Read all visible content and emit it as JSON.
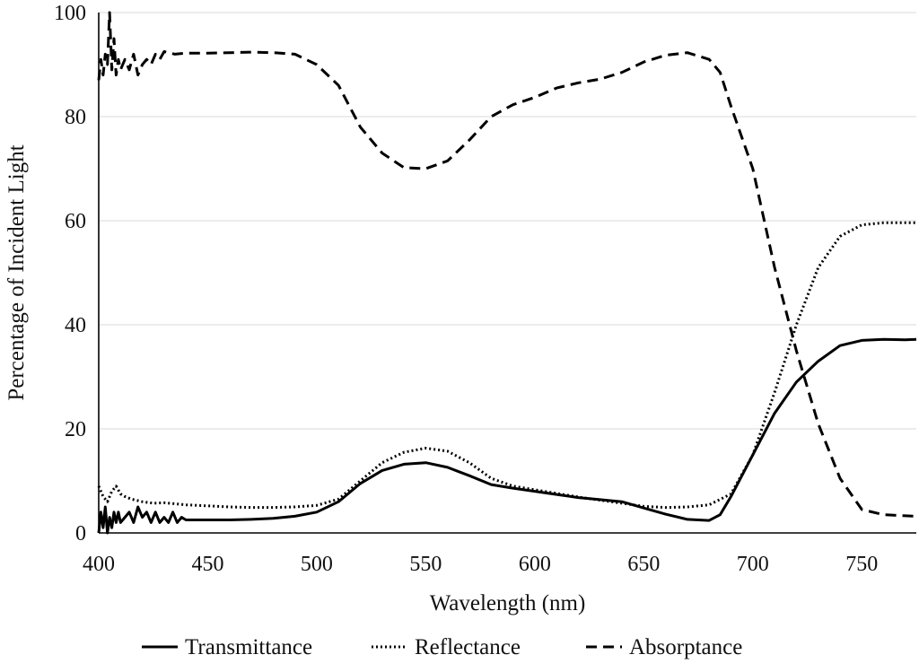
{
  "chart_data": {
    "type": "line",
    "title": "",
    "xlabel": "Wavelength (nm)",
    "ylabel": "Percentage of Incident Light",
    "xlim": [
      400,
      775
    ],
    "ylim": [
      0,
      100
    ],
    "xticks": [
      400,
      450,
      500,
      550,
      600,
      650,
      700,
      750
    ],
    "yticks": [
      0,
      20,
      40,
      60,
      80,
      100
    ],
    "grid": true,
    "legend_position": "bottom",
    "series": [
      {
        "name": "Transmittance",
        "dash": "solid",
        "points": [
          [
            400,
            0
          ],
          [
            401,
            4
          ],
          [
            402,
            1
          ],
          [
            403,
            5
          ],
          [
            404,
            0
          ],
          [
            405,
            3
          ],
          [
            406,
            1
          ],
          [
            407,
            4
          ],
          [
            408,
            2
          ],
          [
            409,
            4
          ],
          [
            410,
            2
          ],
          [
            412,
            3
          ],
          [
            414,
            4
          ],
          [
            416,
            2
          ],
          [
            418,
            5
          ],
          [
            420,
            3
          ],
          [
            422,
            4
          ],
          [
            424,
            2
          ],
          [
            426,
            4
          ],
          [
            428,
            2
          ],
          [
            430,
            3
          ],
          [
            432,
            2
          ],
          [
            434,
            4
          ],
          [
            436,
            2
          ],
          [
            438,
            3
          ],
          [
            440,
            2.5
          ],
          [
            450,
            2.5
          ],
          [
            460,
            2.5
          ],
          [
            470,
            2.6
          ],
          [
            480,
            2.8
          ],
          [
            490,
            3.2
          ],
          [
            500,
            4
          ],
          [
            510,
            6
          ],
          [
            520,
            9.5
          ],
          [
            530,
            12
          ],
          [
            540,
            13.2
          ],
          [
            550,
            13.5
          ],
          [
            560,
            12.6
          ],
          [
            570,
            11
          ],
          [
            580,
            9.3
          ],
          [
            590,
            8.6
          ],
          [
            600,
            8
          ],
          [
            610,
            7.4
          ],
          [
            620,
            6.8
          ],
          [
            630,
            6.4
          ],
          [
            640,
            6
          ],
          [
            650,
            4.8
          ],
          [
            660,
            3.6
          ],
          [
            670,
            2.6
          ],
          [
            680,
            2.4
          ],
          [
            685,
            3.5
          ],
          [
            690,
            7
          ],
          [
            700,
            15
          ],
          [
            710,
            23
          ],
          [
            720,
            29
          ],
          [
            730,
            33
          ],
          [
            740,
            36
          ],
          [
            750,
            37
          ],
          [
            760,
            37.2
          ],
          [
            770,
            37.1
          ],
          [
            775,
            37.2
          ]
        ]
      },
      {
        "name": "Reflectance",
        "dash": "dotted",
        "points": [
          [
            400,
            9
          ],
          [
            402,
            7
          ],
          [
            404,
            6
          ],
          [
            406,
            8
          ],
          [
            408,
            9
          ],
          [
            410,
            7.5
          ],
          [
            412,
            7
          ],
          [
            415,
            6.5
          ],
          [
            420,
            6
          ],
          [
            425,
            5.7
          ],
          [
            430,
            5.8
          ],
          [
            435,
            5.6
          ],
          [
            440,
            5.4
          ],
          [
            450,
            5.2
          ],
          [
            460,
            5
          ],
          [
            470,
            4.9
          ],
          [
            480,
            4.9
          ],
          [
            490,
            5
          ],
          [
            500,
            5.3
          ],
          [
            510,
            6.5
          ],
          [
            520,
            10
          ],
          [
            530,
            13.5
          ],
          [
            540,
            15.5
          ],
          [
            550,
            16.3
          ],
          [
            560,
            15.7
          ],
          [
            570,
            13.5
          ],
          [
            580,
            10.5
          ],
          [
            590,
            9
          ],
          [
            600,
            8.3
          ],
          [
            610,
            7.6
          ],
          [
            620,
            6.9
          ],
          [
            630,
            6.3
          ],
          [
            640,
            5.7
          ],
          [
            650,
            5.1
          ],
          [
            660,
            4.9
          ],
          [
            670,
            5
          ],
          [
            680,
            5.4
          ],
          [
            690,
            7.5
          ],
          [
            700,
            15
          ],
          [
            710,
            27
          ],
          [
            720,
            40
          ],
          [
            730,
            51
          ],
          [
            740,
            57
          ],
          [
            750,
            59.2
          ],
          [
            760,
            59.6
          ],
          [
            770,
            59.6
          ],
          [
            775,
            59.6
          ]
        ]
      },
      {
        "name": "Absorptance",
        "dash": "dashed",
        "points": [
          [
            400,
            87
          ],
          [
            401,
            91
          ],
          [
            402,
            88
          ],
          [
            403,
            92
          ],
          [
            404,
            90
          ],
          [
            405,
            100
          ],
          [
            406,
            89
          ],
          [
            407,
            95
          ],
          [
            408,
            88
          ],
          [
            409,
            91
          ],
          [
            410,
            89
          ],
          [
            412,
            91
          ],
          [
            414,
            89
          ],
          [
            416,
            92
          ],
          [
            418,
            88
          ],
          [
            420,
            90
          ],
          [
            422,
            91
          ],
          [
            424,
            90
          ],
          [
            426,
            92
          ],
          [
            428,
            91
          ],
          [
            430,
            92.5
          ],
          [
            435,
            92
          ],
          [
            440,
            92.2
          ],
          [
            450,
            92.2
          ],
          [
            460,
            92.3
          ],
          [
            470,
            92.4
          ],
          [
            480,
            92.3
          ],
          [
            490,
            92
          ],
          [
            500,
            90
          ],
          [
            510,
            86
          ],
          [
            520,
            78
          ],
          [
            530,
            73
          ],
          [
            540,
            70.2
          ],
          [
            550,
            70
          ],
          [
            560,
            71.5
          ],
          [
            570,
            75.5
          ],
          [
            580,
            80
          ],
          [
            590,
            82.3
          ],
          [
            600,
            83.7
          ],
          [
            610,
            85.5
          ],
          [
            620,
            86.5
          ],
          [
            630,
            87.2
          ],
          [
            640,
            88.5
          ],
          [
            650,
            90.5
          ],
          [
            660,
            91.8
          ],
          [
            670,
            92.3
          ],
          [
            680,
            91
          ],
          [
            685,
            88.5
          ],
          [
            690,
            82
          ],
          [
            700,
            70
          ],
          [
            710,
            51
          ],
          [
            720,
            35
          ],
          [
            730,
            21
          ],
          [
            740,
            10.5
          ],
          [
            750,
            4.5
          ],
          [
            760,
            3.5
          ],
          [
            770,
            3.3
          ],
          [
            775,
            3.2
          ]
        ]
      }
    ]
  }
}
